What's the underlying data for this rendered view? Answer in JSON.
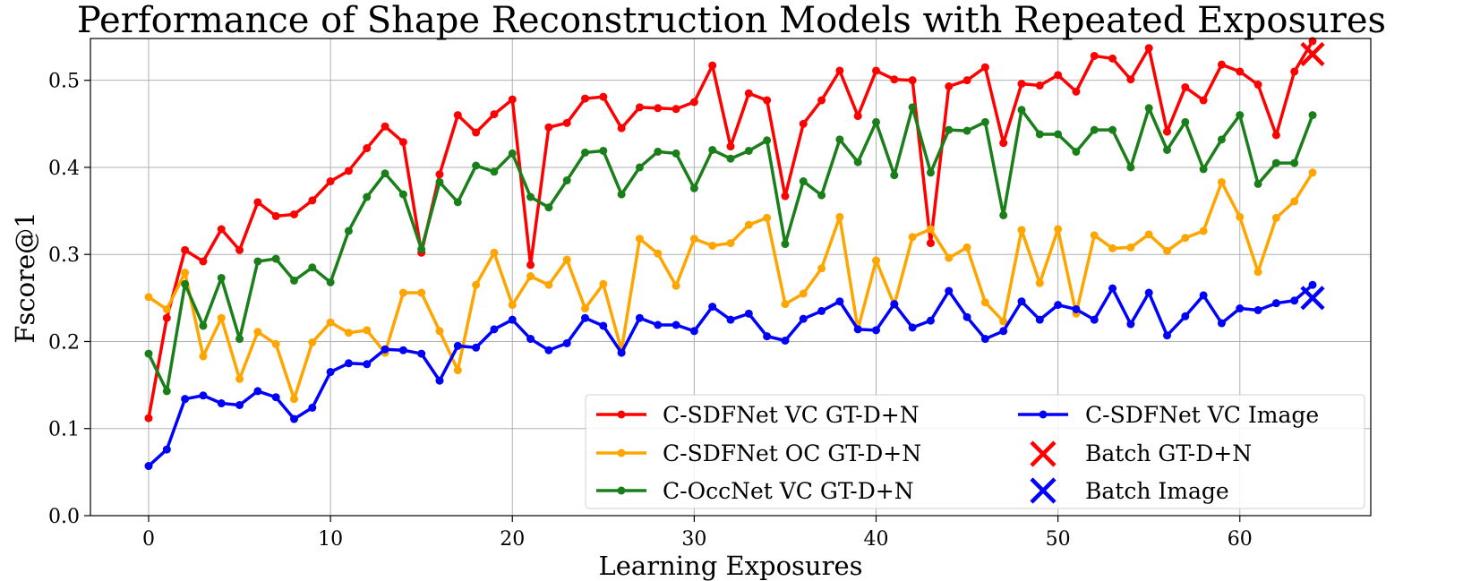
{
  "chart_data": {
    "type": "line",
    "title": "Performance of Shape Reconstruction Models with Repeated Exposures",
    "xlabel": "Learning Exposures",
    "ylabel": "Fscore@1",
    "xlim": [
      -3.2,
      67.2
    ],
    "ylim": [
      0.0,
      0.548
    ],
    "xticks": [
      0,
      10,
      20,
      30,
      40,
      50,
      60
    ],
    "yticks": [
      0.0,
      0.1,
      0.2,
      0.3,
      0.4,
      0.5
    ],
    "xtick_labels": [
      "0",
      "10",
      "20",
      "30",
      "40",
      "50",
      "60"
    ],
    "ytick_labels": [
      "0.0",
      "0.1",
      "0.2",
      "0.3",
      "0.4",
      "0.5"
    ],
    "grid": true,
    "legend_position": "lower-right",
    "series": [
      {
        "name": "C-SDFNet VC GT-D+N",
        "color": "#ff0000",
        "values": [
          0.112,
          0.227,
          0.305,
          0.292,
          0.329,
          0.305,
          0.36,
          0.344,
          0.346,
          0.362,
          0.384,
          0.396,
          0.422,
          0.447,
          0.429,
          0.302,
          0.392,
          0.46,
          0.44,
          0.461,
          0.478,
          0.288,
          0.446,
          0.451,
          0.479,
          0.481,
          0.445,
          0.469,
          0.468,
          0.467,
          0.475,
          0.517,
          0.424,
          0.485,
          0.477,
          0.367,
          0.45,
          0.477,
          0.511,
          0.459,
          0.511,
          0.501,
          0.5,
          0.313,
          0.493,
          0.5,
          0.515,
          0.428,
          0.496,
          0.494,
          0.506,
          0.487,
          0.528,
          0.525,
          0.501,
          0.537,
          0.441,
          0.492,
          0.477,
          0.518,
          0.51,
          0.495,
          0.437,
          0.51,
          0.545
        ]
      },
      {
        "name": "C-SDFNet OC GT-D+N",
        "color": "#ffa500",
        "values": [
          0.251,
          0.237,
          0.279,
          0.183,
          0.227,
          0.157,
          0.211,
          0.197,
          0.134,
          0.199,
          0.222,
          0.21,
          0.213,
          0.187,
          0.256,
          0.256,
          0.212,
          0.167,
          0.265,
          0.302,
          0.242,
          0.275,
          0.265,
          0.294,
          0.238,
          0.266,
          0.19,
          0.318,
          0.301,
          0.264,
          0.318,
          0.31,
          0.313,
          0.334,
          0.342,
          0.243,
          0.255,
          0.284,
          0.343,
          0.214,
          0.293,
          0.242,
          0.32,
          0.329,
          0.296,
          0.308,
          0.245,
          0.223,
          0.328,
          0.267,
          0.329,
          0.232,
          0.322,
          0.307,
          0.308,
          0.323,
          0.304,
          0.319,
          0.327,
          0.383,
          0.343,
          0.28,
          0.342,
          0.361,
          0.394
        ]
      },
      {
        "name": "C-OccNet VC GT-D+N",
        "color": "#1a7f1a",
        "values": [
          0.186,
          0.143,
          0.266,
          0.218,
          0.273,
          0.203,
          0.292,
          0.295,
          0.27,
          0.285,
          0.268,
          0.327,
          0.366,
          0.393,
          0.369,
          0.306,
          0.383,
          0.36,
          0.402,
          0.395,
          0.416,
          0.366,
          0.354,
          0.385,
          0.417,
          0.419,
          0.369,
          0.4,
          0.418,
          0.416,
          0.376,
          0.42,
          0.41,
          0.419,
          0.431,
          0.312,
          0.384,
          0.368,
          0.432,
          0.406,
          0.452,
          0.391,
          0.469,
          0.394,
          0.443,
          0.442,
          0.452,
          0.345,
          0.466,
          0.438,
          0.438,
          0.418,
          0.443,
          0.443,
          0.4,
          0.468,
          0.42,
          0.452,
          0.398,
          0.432,
          0.46,
          0.381,
          0.405,
          0.405,
          0.46
        ]
      },
      {
        "name": "C-SDFNet VC Image",
        "color": "#0000ff",
        "values": [
          0.057,
          0.076,
          0.134,
          0.138,
          0.129,
          0.127,
          0.143,
          0.136,
          0.111,
          0.124,
          0.165,
          0.175,
          0.174,
          0.191,
          0.19,
          0.186,
          0.155,
          0.195,
          0.193,
          0.214,
          0.225,
          0.203,
          0.19,
          0.198,
          0.227,
          0.218,
          0.187,
          0.227,
          0.219,
          0.219,
          0.212,
          0.24,
          0.225,
          0.232,
          0.206,
          0.201,
          0.226,
          0.235,
          0.246,
          0.214,
          0.213,
          0.243,
          0.216,
          0.224,
          0.258,
          0.228,
          0.203,
          0.212,
          0.246,
          0.225,
          0.242,
          0.237,
          0.225,
          0.261,
          0.22,
          0.256,
          0.207,
          0.229,
          0.253,
          0.221,
          0.238,
          0.236,
          0.244,
          0.247,
          0.265
        ]
      }
    ],
    "markers": [
      {
        "name": "Batch GT-D+N",
        "color": "#ff0000",
        "x": 64,
        "y": 0.53
      },
      {
        "name": "Batch Image",
        "color": "#0000ff",
        "x": 64,
        "y": 0.25
      }
    ]
  }
}
